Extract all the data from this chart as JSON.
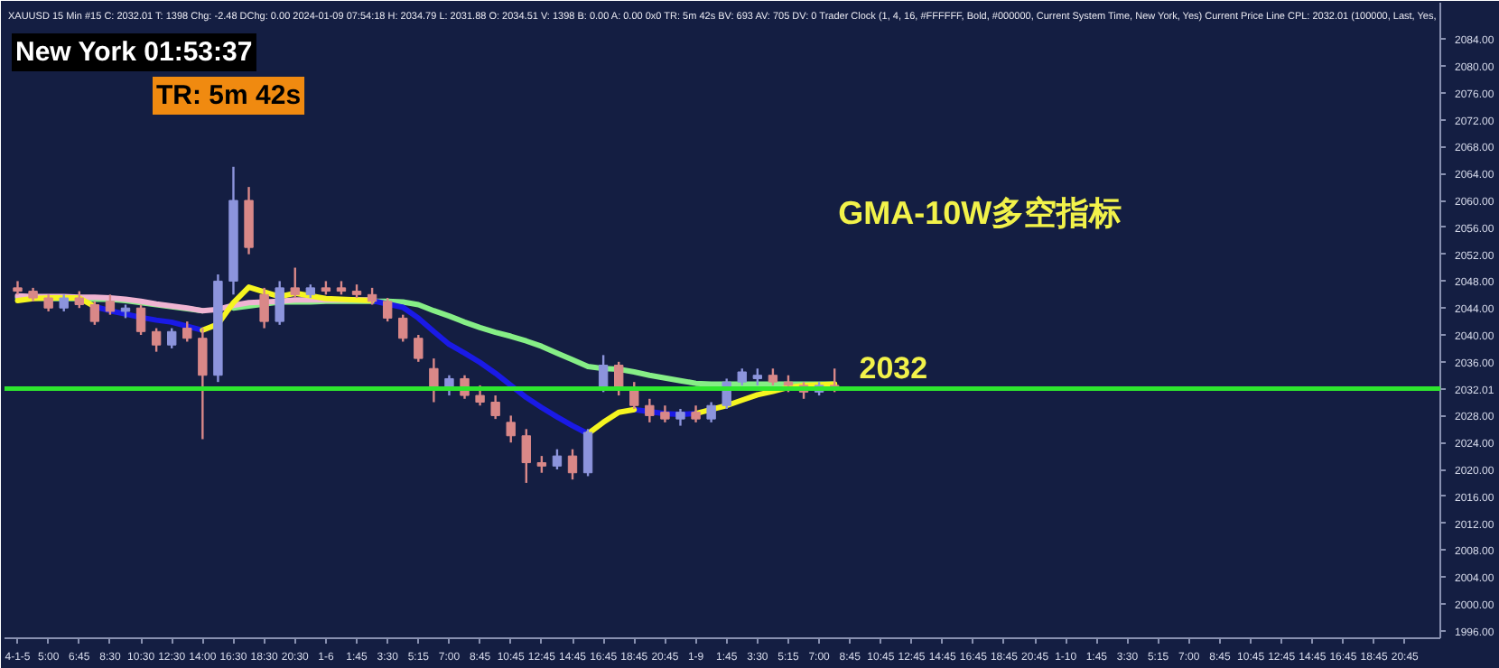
{
  "chart_data": {
    "type": "candlestick",
    "title": "GMA-10W多空指标",
    "categories": [
      "4-1-5",
      null,
      "5:00",
      null,
      "6:45",
      null,
      "8:30",
      null,
      "10:30",
      null,
      "12:30",
      null,
      "14:00",
      null,
      "16:30",
      null,
      "18:30",
      null,
      "20:30",
      null,
      "1-6",
      null,
      "1:45",
      null,
      "3:30",
      null,
      "5:15",
      null,
      "7:00",
      null,
      "8:45",
      null,
      "10:45",
      null,
      "12:45",
      null,
      "14:45",
      null,
      "16:45",
      null,
      "18:45",
      null,
      "20:45",
      null,
      "1-9",
      null,
      "1:45",
      null,
      "3:30",
      null,
      "5:15",
      null,
      "7:00",
      null,
      "8:45",
      null,
      "10:45",
      null,
      "12:45",
      null,
      "14:45",
      null,
      "16:45",
      null,
      "18:45",
      null,
      "20:45",
      null,
      "1-10",
      null,
      "1:45",
      null,
      "3:30",
      null,
      "5:15",
      null,
      "7:00",
      null,
      "8:45",
      null,
      "10:45",
      null,
      "12:45",
      null,
      "14:45",
      null,
      "16:45",
      null,
      "18:45",
      null,
      "20:45"
    ],
    "ohlc": [
      [
        2047,
        2048,
        2046,
        2046.5
      ],
      [
        2046.5,
        2047,
        2045,
        2045.5
      ],
      [
        2045.5,
        2046,
        2043.5,
        2044
      ],
      [
        2044,
        2046,
        2043.5,
        2045.5
      ],
      [
        2045.5,
        2046.5,
        2044,
        2044.5
      ],
      [
        2044.5,
        2045,
        2041.5,
        2042
      ],
      [
        2045,
        2046,
        2043,
        2043.5
      ],
      [
        2043.5,
        2044.5,
        2042.5,
        2044
      ],
      [
        2044,
        2044.5,
        2040,
        2040.5
      ],
      [
        2040.5,
        2041,
        2037.5,
        2038.5
      ],
      [
        2038.5,
        2041,
        2038,
        2040.5
      ],
      [
        2041,
        2042,
        2039,
        2039.5
      ],
      [
        2039.5,
        2041,
        2024.5,
        2034
      ],
      [
        2034,
        2049,
        2033,
        2048
      ],
      [
        2048,
        2065,
        2046,
        2060
      ],
      [
        2060,
        2062,
        2052,
        2053
      ],
      [
        2046,
        2047,
        2041,
        2042
      ],
      [
        2042,
        2048,
        2041.5,
        2047
      ],
      [
        2047,
        2050,
        2045.5,
        2046
      ],
      [
        2046,
        2047.5,
        2045.5,
        2047
      ],
      [
        2047,
        2048,
        2046,
        2046.5
      ],
      [
        2047,
        2048,
        2046,
        2046.5
      ],
      [
        2046.5,
        2047.5,
        2045.5,
        2046
      ],
      [
        2046,
        2047,
        2044.5,
        2045
      ],
      [
        2045,
        2045.5,
        2042,
        2042.5
      ],
      [
        2042.5,
        2043,
        2039,
        2039.5
      ],
      [
        2039.5,
        2040,
        2036,
        2036.5
      ],
      [
        2035,
        2036.5,
        2030,
        2032
      ],
      [
        2032,
        2034,
        2031,
        2033.5
      ],
      [
        2033.5,
        2034,
        2030.5,
        2031
      ],
      [
        2031,
        2032.5,
        2029.5,
        2030
      ],
      [
        2030,
        2031,
        2027.5,
        2028
      ],
      [
        2027,
        2028,
        2024,
        2025
      ],
      [
        2025,
        2026,
        2018,
        2021
      ],
      [
        2021,
        2022,
        2019.5,
        2020.5
      ],
      [
        2020.5,
        2023,
        2020,
        2022
      ],
      [
        2022,
        2023,
        2018.5,
        2019.5
      ],
      [
        2019.5,
        2026,
        2019,
        2025.5
      ],
      [
        2032,
        2037,
        2031.5,
        2035.5
      ],
      [
        2035.5,
        2036,
        2031,
        2032
      ],
      [
        2032,
        2033,
        2029,
        2029.5
      ],
      [
        2029.5,
        2030.5,
        2027,
        2028
      ],
      [
        2028.5,
        2029.5,
        2027,
        2027.5
      ],
      [
        2027.5,
        2029,
        2026.5,
        2028.5
      ],
      [
        2028.5,
        2029.5,
        2027,
        2027.5
      ],
      [
        2027.5,
        2030,
        2027,
        2029.5
      ],
      [
        2029.5,
        2033.5,
        2029,
        2033
      ],
      [
        2033,
        2035,
        2032.5,
        2034.5
      ],
      [
        2033.5,
        2035,
        2032.5,
        2034
      ],
      [
        2034,
        2035,
        2032.5,
        2033
      ],
      [
        2033,
        2034,
        2031.5,
        2032.5
      ],
      [
        2032.5,
        2033,
        2030.5,
        2031.5
      ],
      [
        2031.5,
        2033,
        2031,
        2032.5
      ],
      [
        2032.5,
        2035,
        2031.5,
        2032.01
      ],
      null,
      null,
      null,
      null,
      null,
      null,
      null,
      null,
      null,
      null,
      null,
      null,
      null,
      null,
      null,
      null,
      null,
      null,
      null,
      null,
      null,
      null,
      null,
      null,
      null,
      null,
      null,
      null,
      null,
      null,
      null,
      null,
      null,
      null,
      null,
      null,
      null
    ],
    "colors": [
      "#d98888",
      "#d98888",
      "#d98888",
      "#8c94dc",
      "#d98888",
      "#d98888",
      "#d98888",
      "#8c94dc",
      "#d98888",
      "#d98888",
      "#8c94dc",
      "#d98888",
      "#d98888",
      "#8c94dc",
      "#8c94dc",
      "#d98888",
      "#d98888",
      "#8c94dc",
      "#d98888",
      "#8c94dc",
      "#d98888",
      "#d98888",
      "#d98888",
      "#d98888",
      "#d98888",
      "#d98888",
      "#d98888",
      "#d98888",
      "#8c94dc",
      "#d98888",
      "#d98888",
      "#d98888",
      "#d98888",
      "#d98888",
      "#d98888",
      "#8c94dc",
      "#d98888",
      "#8c94dc",
      "#8c94dc",
      "#d98888",
      "#d98888",
      "#d98888",
      "#d98888",
      "#8c94dc",
      "#d98888",
      "#8c94dc",
      "#8c94dc",
      "#8c94dc",
      "#8c94dc",
      "#d98888",
      "#d98888",
      "#d98888",
      "#8c94dc",
      "#d98888",
      null,
      null,
      null,
      null,
      null,
      null,
      null,
      null,
      null,
      null,
      null,
      null,
      null,
      null,
      null,
      null,
      null,
      null,
      null,
      null,
      null,
      null,
      null,
      null,
      null,
      null,
      null,
      null,
      null,
      null,
      null,
      null,
      null,
      null,
      null,
      null,
      null
    ],
    "series": [
      {
        "type": "line",
        "color": "#86ee86",
        "values": [
          2045.5,
          2045.5,
          2045.4,
          2045.4,
          2045.4,
          2045.3,
          2045.3,
          2045.1,
          2044.8,
          2044.5,
          2044.2,
          2043.9,
          2043.6,
          null,
          2044.0,
          2044.3,
          2044.6,
          2044.9,
          2044.9,
          2044.9,
          2045,
          2045,
          2045,
          2045,
          2045,
          2044.9,
          2044.5,
          2043.6,
          2042.8,
          2041.9,
          2041.1,
          2040.4,
          2039.8,
          2039.1,
          2038.3,
          2037.3,
          2036.3,
          2035.3,
          2035,
          2034.9,
          2034.5,
          2034,
          2033.6,
          2033.2,
          2032.8,
          2032.7,
          2032.7,
          2032.7,
          2032.7,
          2032.7,
          2032.7,
          2032.7,
          2032.7,
          2032.7,
          null,
          null,
          null,
          null,
          null,
          null,
          null,
          null,
          null,
          null,
          null,
          null,
          null,
          null,
          null,
          null,
          null,
          null,
          null,
          null,
          null,
          null,
          null,
          null,
          null,
          null,
          null,
          null,
          null,
          null,
          null,
          null,
          null,
          null,
          null,
          null,
          null
        ]
      },
      {
        "type": "line",
        "color": "#f0b4d2",
        "values": [
          2045.8,
          2045.7,
          2045.7,
          2045.7,
          2045.6,
          2045.6,
          2045.5,
          2045.3,
          2045,
          2044.6,
          2044.3,
          2044,
          2043.6,
          2043.8,
          2044.4,
          2044.8,
          2044.9,
          2045,
          2045.2,
          2045.2,
          2045.2,
          2045.2,
          2045.2,
          2045.2,
          null,
          null,
          null,
          null,
          null,
          null,
          null,
          null,
          null,
          null,
          null,
          null,
          null,
          null,
          null,
          null,
          null,
          null,
          null,
          null,
          null,
          null,
          null,
          null,
          null,
          null,
          null,
          null,
          null,
          null,
          null,
          null,
          null,
          null,
          null,
          null,
          null,
          null,
          null,
          null,
          null,
          null,
          null,
          null,
          null,
          null,
          null,
          null,
          null,
          null,
          null,
          null,
          null,
          null,
          null,
          null,
          null,
          null,
          null,
          null,
          null,
          null,
          null,
          null,
          null,
          null,
          null
        ]
      },
      {
        "type": "line",
        "color": "#1a1ae6",
        "values": [
          null,
          null,
          null,
          null,
          null,
          2044.2,
          2043.6,
          2043.1,
          2042.6,
          2042.2,
          2041.9,
          2041.3,
          2040.7,
          null,
          null,
          null,
          null,
          null,
          null,
          null,
          null,
          null,
          null,
          2045.1,
          2044.6,
          2044.1,
          2042.5,
          2040.5,
          2038.6,
          2037.3,
          2035.9,
          2034.3,
          2032.5,
          2030.7,
          2029.2,
          2027.8,
          2026.5,
          2025.3,
          null,
          null,
          2028.9,
          2028.6,
          2028.3,
          2028.2,
          2028.3,
          null,
          null,
          null,
          null,
          null,
          null,
          null,
          null,
          null,
          null,
          null,
          null,
          null,
          null,
          null,
          null,
          null,
          null,
          null,
          null,
          null,
          null,
          null,
          null,
          null,
          null,
          null,
          null,
          null,
          null,
          null,
          null,
          null,
          null,
          null,
          null,
          null,
          null,
          null,
          null,
          null,
          null,
          null,
          null,
          null,
          null
        ]
      },
      {
        "type": "line",
        "color": "#f5f520",
        "values": [
          2045.1,
          2045.4,
          2045.5,
          2045.5,
          2045.5,
          2044.2,
          null,
          null,
          null,
          null,
          null,
          null,
          2040.7,
          2041.6,
          2044.8,
          2047.1,
          2046.4,
          2045.7,
          2046.2,
          2045.8,
          2045.4,
          2045.3,
          2045.2,
          2045.1,
          null,
          null,
          null,
          null,
          null,
          null,
          null,
          null,
          null,
          null,
          null,
          null,
          null,
          2025.3,
          2027,
          2028.5,
          2028.9,
          null,
          null,
          null,
          2028.3,
          2028.9,
          2029.5,
          2030.3,
          2031.1,
          2031.6,
          2032.2,
          2032.5,
          2032.6,
          2032.7,
          null,
          null,
          null,
          null,
          null,
          null,
          null,
          null,
          null,
          null,
          null,
          null,
          null,
          null,
          null,
          null,
          null,
          null,
          null,
          null,
          null,
          null,
          null,
          null,
          null,
          null,
          null,
          null,
          null,
          null,
          null,
          null,
          null,
          null,
          null,
          null,
          null
        ]
      }
    ],
    "ylim": [
      1994.9,
      2089.4
    ],
    "yticks": [
      {
        "value": 1996,
        "label": "1996.00"
      },
      {
        "value": 2000,
        "label": "2000.00"
      },
      {
        "value": 2004,
        "label": "2004.00"
      },
      {
        "value": 2008,
        "label": "2008.00"
      },
      {
        "value": 2012,
        "label": "2012.00"
      },
      {
        "value": 2016,
        "label": "2016.00"
      },
      {
        "value": 2020,
        "label": "2020.00"
      },
      {
        "value": 2024,
        "label": "2024.00"
      },
      {
        "value": 2028,
        "label": "2028.00"
      },
      {
        "value": 2032.01,
        "label": "2032.01"
      },
      {
        "value": 2036,
        "label": "2036.00"
      },
      {
        "value": 2040,
        "label": "2040.00"
      },
      {
        "value": 2044,
        "label": "2044.00"
      },
      {
        "value": 2048,
        "label": "2048.00"
      },
      {
        "value": 2052,
        "label": "2052.00"
      },
      {
        "value": 2056,
        "label": "2056.00"
      },
      {
        "value": 2060,
        "label": "2060.00"
      },
      {
        "value": 2064,
        "label": "2064.00"
      },
      {
        "value": 2068,
        "label": "2068.00"
      },
      {
        "value": 2072,
        "label": "2072.00"
      },
      {
        "value": 2076,
        "label": "2076.00"
      },
      {
        "value": 2080,
        "label": "2080.00"
      },
      {
        "value": 2084,
        "label": "2084.00"
      }
    ],
    "ref_lines": [
      {
        "axis": "y",
        "value": 2032.01,
        "label": "2032",
        "color": "#2ee62e"
      }
    ],
    "annotations": [
      "XAUUSD  15 Min  #15 C: 2032.01  T: 1398  Chg: -2.48  DChg: 0.00  2024-01-09 07:54:18 H: 2034.79 L: 2031.88 O: 2034.51 V: 1398 B: 0.00 A: 0.00 0x0 TR: 5m 42s BV: 693 AV: 705 DV: 0 Trader Clock  (1, 4, 16, #FFFFFF, Bold, #000000, Current System Time, New York, Yes)  Current Price Line  CPL: 2032.01  (100000, Last, Yes,",
      "New York 01:53:37",
      "TR: 5m 42s"
    ],
    "grid": false
  }
}
